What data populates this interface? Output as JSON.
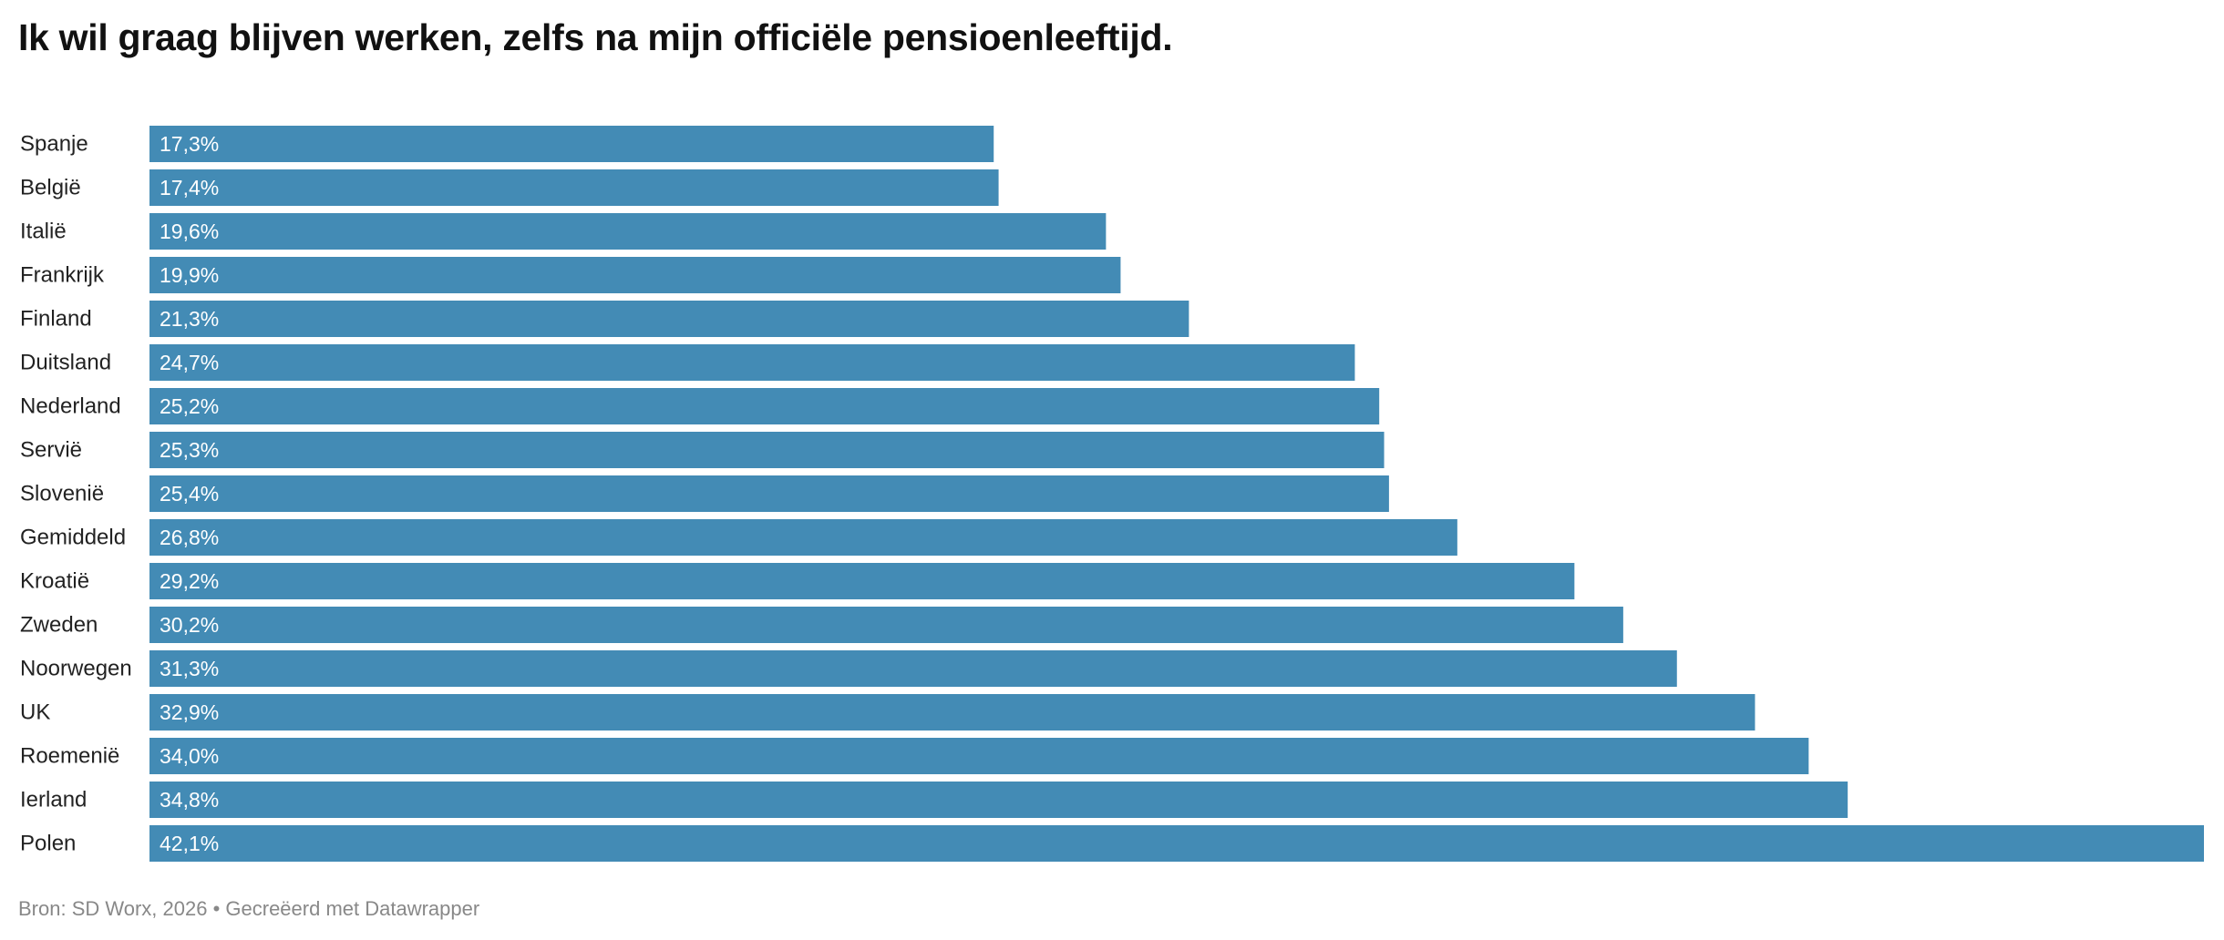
{
  "chart_data": {
    "type": "bar",
    "orientation": "horizontal",
    "title": "Ik wil graag blijven werken, zelfs na mijn officiële pensioenleeftijd.",
    "categories": [
      "Spanje",
      "België",
      "Italië",
      "Frankrijk",
      "Finland",
      "Duitsland",
      "Nederland",
      "Servië",
      "Slovenië",
      "Gemiddeld",
      "Kroatië",
      "Zweden",
      "Noorwegen",
      "UK",
      "Roemenië",
      "Ierland",
      "Polen"
    ],
    "values": [
      17.3,
      17.4,
      19.6,
      19.9,
      21.3,
      24.7,
      25.2,
      25.3,
      25.4,
      26.8,
      29.2,
      30.2,
      31.3,
      32.9,
      34.0,
      34.8,
      42.1
    ],
    "value_labels": [
      "17,3%",
      "17,4%",
      "19,6%",
      "19,9%",
      "21,3%",
      "24,7%",
      "25,2%",
      "25,3%",
      "25,4%",
      "26,8%",
      "29,2%",
      "30,2%",
      "31,3%",
      "32,9%",
      "34,0%",
      "34,8%",
      "42,1%"
    ],
    "xlim": [
      0,
      42.1
    ],
    "bar_color": "#438bb5",
    "label_color": "#ffffff",
    "grid": false,
    "legend": "none"
  },
  "footer": {
    "source": "Bron: SD Worx, 2026 • Gecreëerd met Datawrapper"
  }
}
